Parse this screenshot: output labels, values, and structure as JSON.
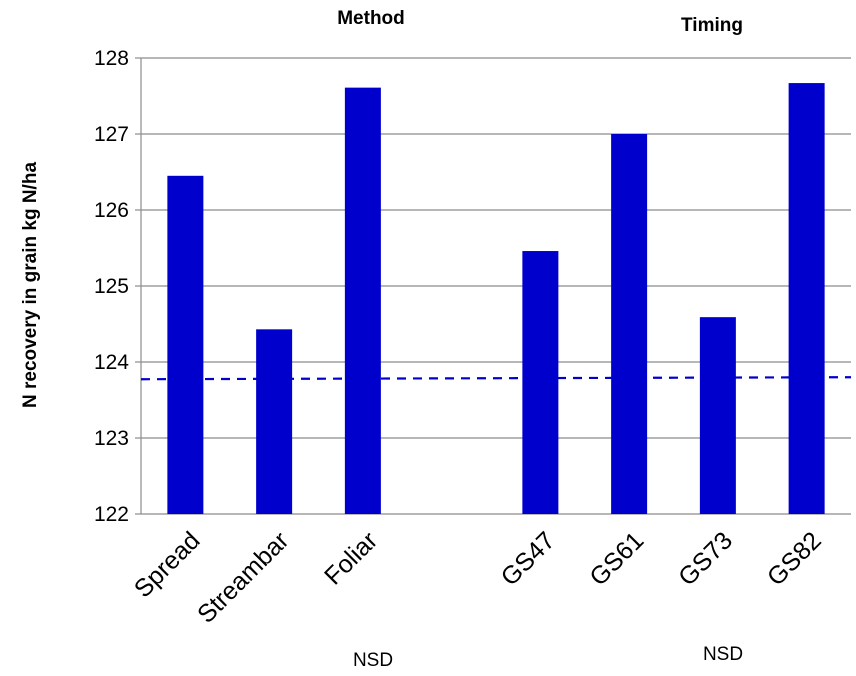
{
  "chart_data": {
    "type": "bar",
    "categories": [
      "Spread",
      "Streambar",
      "Foliar",
      "",
      "GS47",
      "GS61",
      "GS73",
      "GS82"
    ],
    "values": [
      126.45,
      124.43,
      127.61,
      null,
      125.46,
      127.0,
      124.59,
      127.67
    ],
    "ylabel": "N recovery in grain kg N/ha",
    "ylim": [
      122,
      128
    ],
    "yticks": [
      122,
      123,
      124,
      125,
      126,
      127,
      128
    ],
    "grid": true,
    "bar_color": "#0000CC",
    "reference_line": {
      "value": 123.78,
      "style": "dashed",
      "color": "#0000CC"
    },
    "group_titles": [
      "Method",
      "Timing"
    ],
    "annotations": [
      "NSD",
      "NSD"
    ]
  }
}
